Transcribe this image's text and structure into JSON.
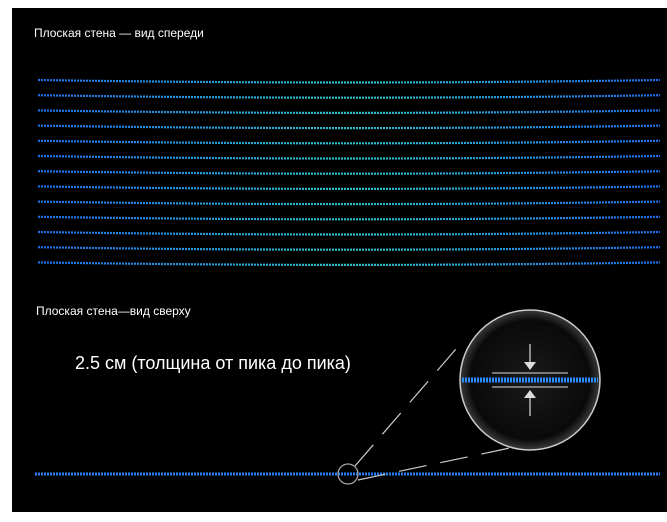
{
  "front_view": {
    "label": "Плоская стена — вид спереди"
  },
  "top_view": {
    "label": "Плоская стена—вид сверху",
    "annotation": "2.5 см (толщина от пика до пика)"
  }
}
